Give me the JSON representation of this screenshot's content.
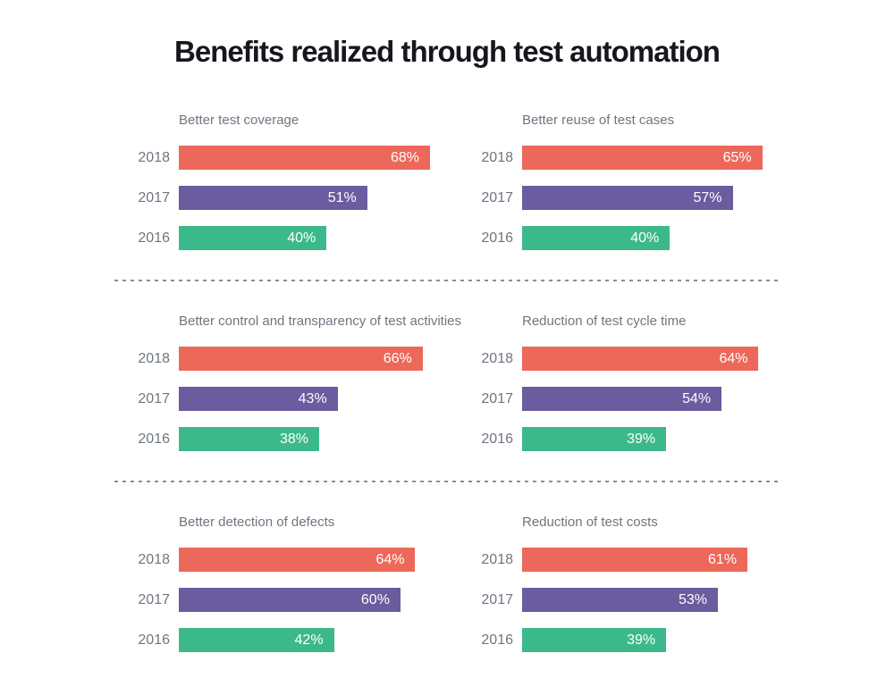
{
  "page_title": "Benefits realized through test automation",
  "colors": {
    "2018": "#EC685A",
    "2017": "#6B5B9F",
    "2016": "#3CB98B",
    "divider": "#8E8E8E",
    "label_gray": "#6F7680",
    "title_dark": "#16161E",
    "bar_value_text": "#FFFFFF",
    "background": "#FFFFFF"
  },
  "layout_hints": {
    "grid": "2 columns x 3 rows",
    "bar_scale_max": 68,
    "value_suffix": "%",
    "legend": "none",
    "grid_lines": "off",
    "value_labels": "inside bar, right aligned, white"
  },
  "chart_data": [
    {
      "type": "bar",
      "orientation": "horizontal",
      "title": "Better test coverage",
      "categories": [
        "2018",
        "2017",
        "2016"
      ],
      "values": [
        68,
        51,
        40
      ],
      "xlim": [
        0,
        68
      ]
    },
    {
      "type": "bar",
      "orientation": "horizontal",
      "title": "Better reuse of test cases",
      "categories": [
        "2018",
        "2017",
        "2016"
      ],
      "values": [
        65,
        57,
        40
      ],
      "xlim": [
        0,
        68
      ]
    },
    {
      "type": "bar",
      "orientation": "horizontal",
      "title": "Better control and transparency of test activities",
      "categories": [
        "2018",
        "2017",
        "2016"
      ],
      "values": [
        66,
        43,
        38
      ],
      "xlim": [
        0,
        68
      ]
    },
    {
      "type": "bar",
      "orientation": "horizontal",
      "title": "Reduction of test cycle time",
      "categories": [
        "2018",
        "2017",
        "2016"
      ],
      "values": [
        64,
        54,
        39
      ],
      "xlim": [
        0,
        68
      ]
    },
    {
      "type": "bar",
      "orientation": "horizontal",
      "title": "Better detection of defects",
      "categories": [
        "2018",
        "2017",
        "2016"
      ],
      "values": [
        64,
        60,
        42
      ],
      "xlim": [
        0,
        68
      ]
    },
    {
      "type": "bar",
      "orientation": "horizontal",
      "title": "Reduction of test costs",
      "categories": [
        "2018",
        "2017",
        "2016"
      ],
      "values": [
        61,
        53,
        39
      ],
      "xlim": [
        0,
        68
      ]
    }
  ]
}
